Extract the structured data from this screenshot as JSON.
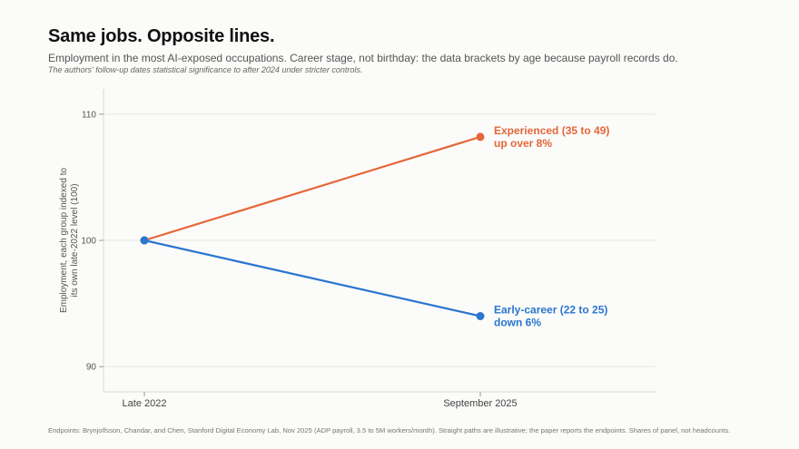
{
  "header": {
    "title": "Same jobs. Opposite lines.",
    "subtitle": "Employment in the most AI-exposed occupations. Career stage, not birthday: the data brackets by age because payroll records do.",
    "note": "The authors' follow-up dates statistical significance to after 2024 under stricter controls."
  },
  "footer": {
    "source": "Endpoints: Brynjolfsson, Chandar, and Chen, Stanford Digital Economy Lab, Nov 2025 (ADP payroll, 3.5 to 5M workers/month). Straight paths are illustrative; the paper reports the endpoints. Shares of panel, not headcounts."
  },
  "chart_data": {
    "type": "line",
    "categories": [
      "Late 2022",
      "September 2025"
    ],
    "ylabel_lines": [
      "Employment, each group indexed to",
      "its own late-2022 level (100)"
    ],
    "ylim": [
      88,
      112
    ],
    "yticks": [
      90,
      100,
      110
    ],
    "grid": true,
    "legend": "direct-labels",
    "series": [
      {
        "label_lines": [
          "Experienced (35 to 49)",
          "up over 8%"
        ],
        "color": "#e5673a",
        "values": [
          100,
          108.2
        ]
      },
      {
        "label_lines": [
          "Early-career (22 to 25)",
          "down 6%"
        ],
        "color": "#2a76cf",
        "values": [
          100,
          94
        ]
      }
    ]
  }
}
